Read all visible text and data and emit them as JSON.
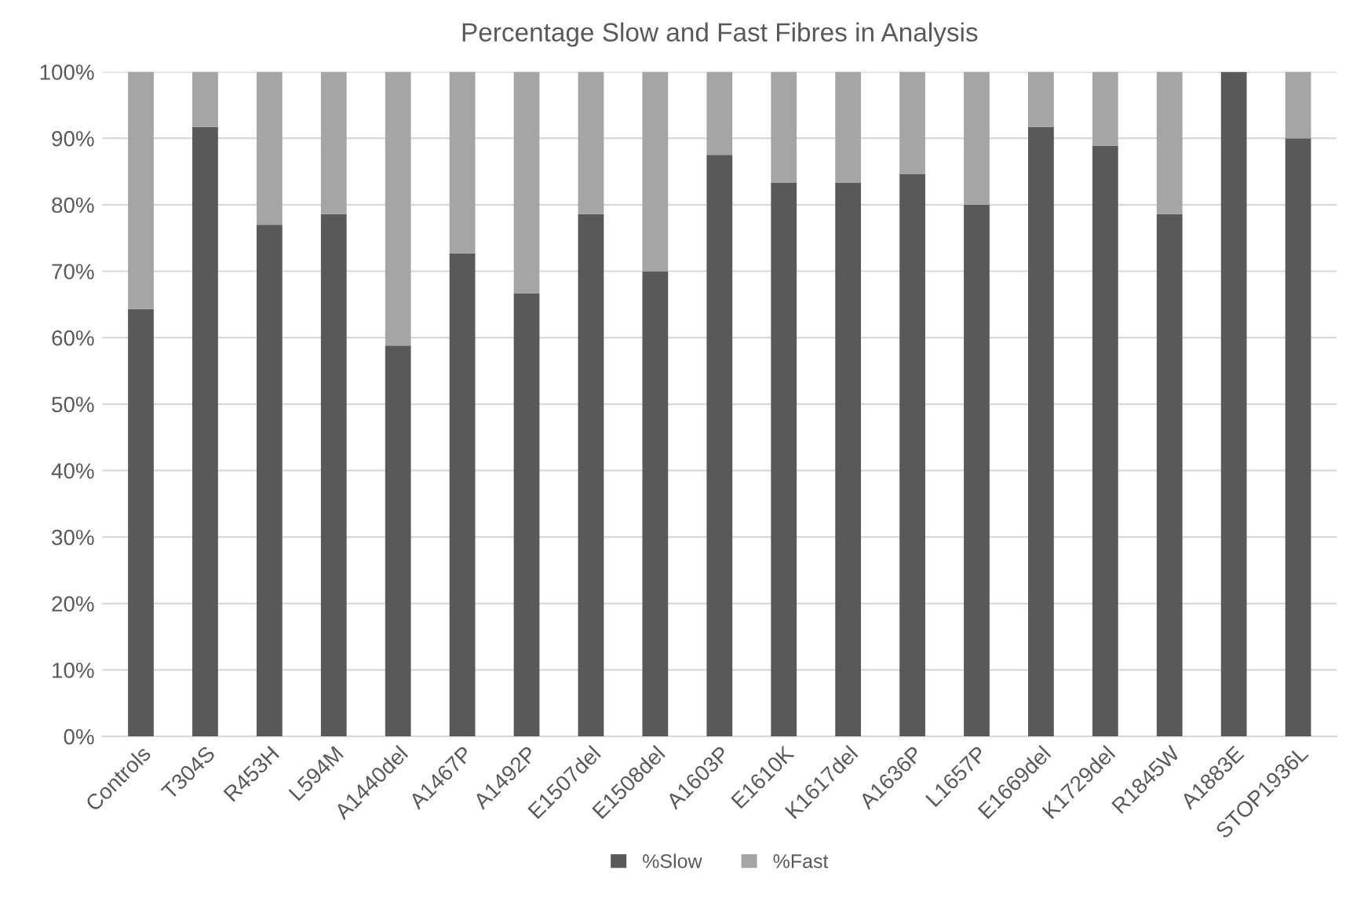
{
  "chart_data": {
    "type": "bar",
    "title": "Percentage Slow and Fast Fibres in Analysis",
    "categories": [
      "Controls",
      "T304S",
      "R453H",
      "L594M",
      "A1440del",
      "A1467P",
      "A1492P",
      "E1507del",
      "E1508del",
      "A1603P",
      "E1610K",
      "K1617del",
      "A1636P",
      "L1657P",
      "E1669del",
      "K1729del",
      "R1845W",
      "A1883E",
      "STOP1936L"
    ],
    "series": [
      {
        "name": "%Slow",
        "color": "#595959",
        "values": [
          64.3,
          91.7,
          77,
          78.6,
          58.8,
          72.7,
          66.7,
          78.6,
          70,
          87.5,
          83.3,
          83.3,
          84.6,
          80,
          91.7,
          88.9,
          78.6,
          100,
          90
        ]
      },
      {
        "name": "%Fast",
        "color": "#a5a5a5",
        "values": [
          35.7,
          8.3,
          23,
          21.4,
          41.2,
          27.3,
          33.3,
          21.4,
          30,
          12.5,
          16.7,
          16.7,
          15.4,
          20,
          8.3,
          11.1,
          21.4,
          0,
          10
        ]
      }
    ],
    "stacked": true,
    "ylim": [
      0,
      100
    ],
    "yticks": [
      {
        "value": 0,
        "label": "0%"
      },
      {
        "value": 10,
        "label": "10%"
      },
      {
        "value": 20,
        "label": "20%"
      },
      {
        "value": 30,
        "label": "30%"
      },
      {
        "value": 40,
        "label": "40%"
      },
      {
        "value": 50,
        "label": "50%"
      },
      {
        "value": 60,
        "label": "60%"
      },
      {
        "value": 70,
        "label": "70%"
      },
      {
        "value": 80,
        "label": "80%"
      },
      {
        "value": 90,
        "label": "90%"
      },
      {
        "value": 100,
        "label": "100%"
      }
    ],
    "grid": "y",
    "legend": "bottom"
  }
}
